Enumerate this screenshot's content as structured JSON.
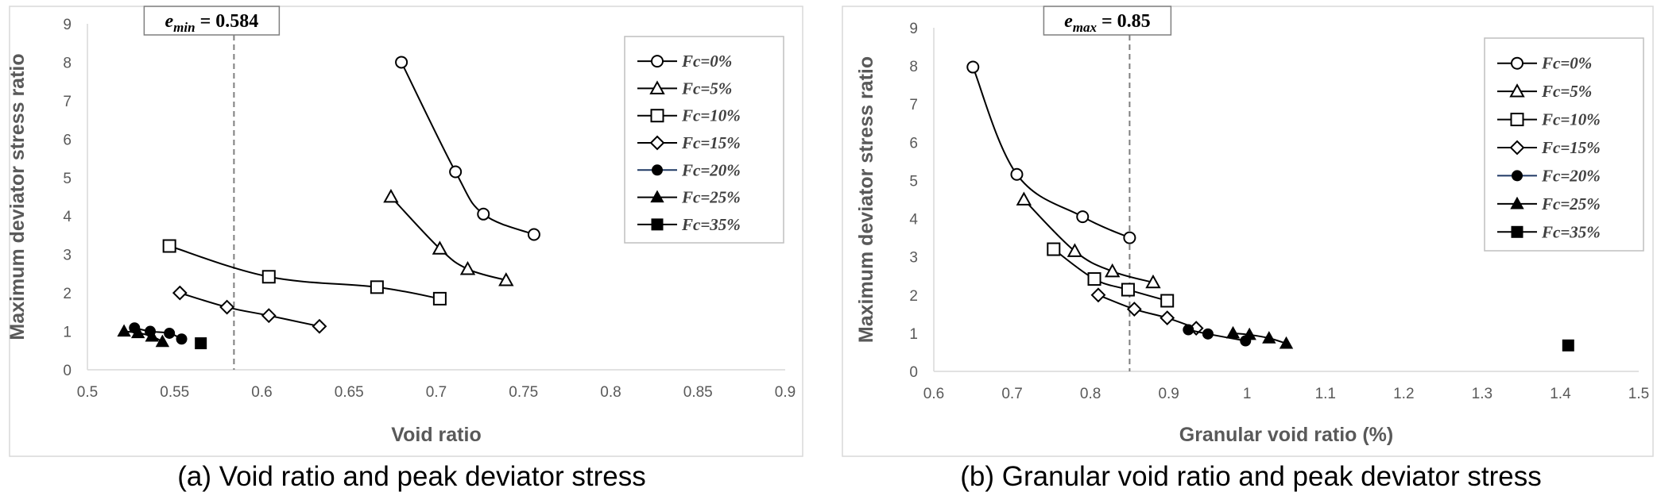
{
  "chart_data": [
    {
      "type": "line",
      "caption": "(a) Void ratio and peak deviator stress",
      "xlabel": "Void ratio",
      "ylabel": "Maximum deviator stress ratio",
      "xlim": [
        0.5,
        0.9
      ],
      "ylim": [
        0,
        9
      ],
      "xticks": [
        "0.5",
        "0.55",
        "0.6",
        "0.65",
        "0.7",
        "0.75",
        "0.8",
        "0.85",
        "0.9"
      ],
      "yticks": [
        "0",
        "1",
        "2",
        "3",
        "4",
        "5",
        "6",
        "7",
        "8",
        "9"
      ],
      "reference_line": {
        "x": 0.584,
        "label": "e_min = 0.584"
      },
      "legend": {
        "position": "top-right"
      },
      "series": [
        {
          "name": "Fc=0%",
          "marker": "circle-open",
          "points": [
            [
              0.68,
              8.0
            ],
            [
              0.711,
              5.15
            ],
            [
              0.727,
              4.05
            ],
            [
              0.756,
              3.52
            ]
          ]
        },
        {
          "name": "Fc=5%",
          "marker": "triangle-open",
          "points": [
            [
              0.674,
              4.5
            ],
            [
              0.702,
              3.15
            ],
            [
              0.718,
              2.62
            ],
            [
              0.74,
              2.33
            ]
          ]
        },
        {
          "name": "Fc=10%",
          "marker": "square-open",
          "points": [
            [
              0.547,
              3.22
            ],
            [
              0.604,
              2.42
            ],
            [
              0.666,
              2.15
            ],
            [
              0.702,
              1.85
            ]
          ]
        },
        {
          "name": "Fc=15%",
          "marker": "diamond-open",
          "points": [
            [
              0.553,
              2.0
            ],
            [
              0.58,
              1.63
            ],
            [
              0.604,
              1.41
            ],
            [
              0.633,
              1.13
            ]
          ]
        },
        {
          "name": "Fc=20%",
          "marker": "circle-filled",
          "points": [
            [
              0.527,
              1.09
            ],
            [
              0.536,
              1.0
            ],
            [
              0.547,
              0.95
            ],
            [
              0.554,
              0.8
            ]
          ]
        },
        {
          "name": "Fc=25%",
          "marker": "triangle-filled",
          "points": [
            [
              0.521,
              1.0
            ],
            [
              0.529,
              0.96
            ],
            [
              0.537,
              0.87
            ],
            [
              0.543,
              0.73
            ]
          ]
        },
        {
          "name": "Fc=35%",
          "marker": "square-filled",
          "points": [
            [
              0.565,
              0.69
            ]
          ]
        }
      ]
    },
    {
      "type": "line",
      "caption": "(b) Granular void ratio and peak deviator stress",
      "xlabel": "Granular void ratio (%)",
      "ylabel": "Maximum deviator stress ratio",
      "xlim": [
        0.6,
        1.5
      ],
      "ylim": [
        0,
        9
      ],
      "xticks": [
        "0.6",
        "0.7",
        "0.8",
        "0.9",
        "1",
        "1.1",
        "1.2",
        "1.3",
        "1.4",
        "1.5"
      ],
      "yticks": [
        "0",
        "1",
        "2",
        "3",
        "4",
        "5",
        "6",
        "7",
        "8",
        "9"
      ],
      "reference_line": {
        "x": 0.85,
        "label": "e_max = 0.85"
      },
      "legend": {
        "position": "top-right"
      },
      "series": [
        {
          "name": "Fc=0%",
          "marker": "circle-open",
          "points": [
            [
              0.65,
              7.97
            ],
            [
              0.706,
              5.16
            ],
            [
              0.79,
              4.05
            ],
            [
              0.85,
              3.5
            ]
          ]
        },
        {
          "name": "Fc=5%",
          "marker": "triangle-open",
          "points": [
            [
              0.715,
              4.5
            ],
            [
              0.78,
              3.15
            ],
            [
              0.828,
              2.62
            ],
            [
              0.88,
              2.33
            ]
          ]
        },
        {
          "name": "Fc=10%",
          "marker": "square-open",
          "points": [
            [
              0.753,
              3.2
            ],
            [
              0.805,
              2.42
            ],
            [
              0.848,
              2.14
            ],
            [
              0.898,
              1.85
            ]
          ]
        },
        {
          "name": "Fc=15%",
          "marker": "diamond-open",
          "points": [
            [
              0.81,
              2.0
            ],
            [
              0.856,
              1.63
            ],
            [
              0.898,
              1.4
            ],
            [
              0.935,
              1.13
            ]
          ]
        },
        {
          "name": "Fc=20%",
          "marker": "circle-filled",
          "points": [
            [
              0.925,
              1.09
            ],
            [
              0.95,
              0.98
            ],
            [
              0.998,
              0.8
            ]
          ]
        },
        {
          "name": "Fc=25%",
          "marker": "triangle-filled",
          "points": [
            [
              0.982,
              1.0
            ],
            [
              1.003,
              0.96
            ],
            [
              1.028,
              0.87
            ],
            [
              1.05,
              0.73
            ]
          ]
        },
        {
          "name": "Fc=35%",
          "marker": "square-filled",
          "points": [
            [
              1.41,
              0.68
            ]
          ]
        }
      ]
    }
  ],
  "colors": {
    "axis": "#d9d9d9",
    "tick_text": "#595959",
    "series_line": "#000000",
    "fc20_segment": "#1f3864",
    "ref_line": "#7f7f7f"
  }
}
